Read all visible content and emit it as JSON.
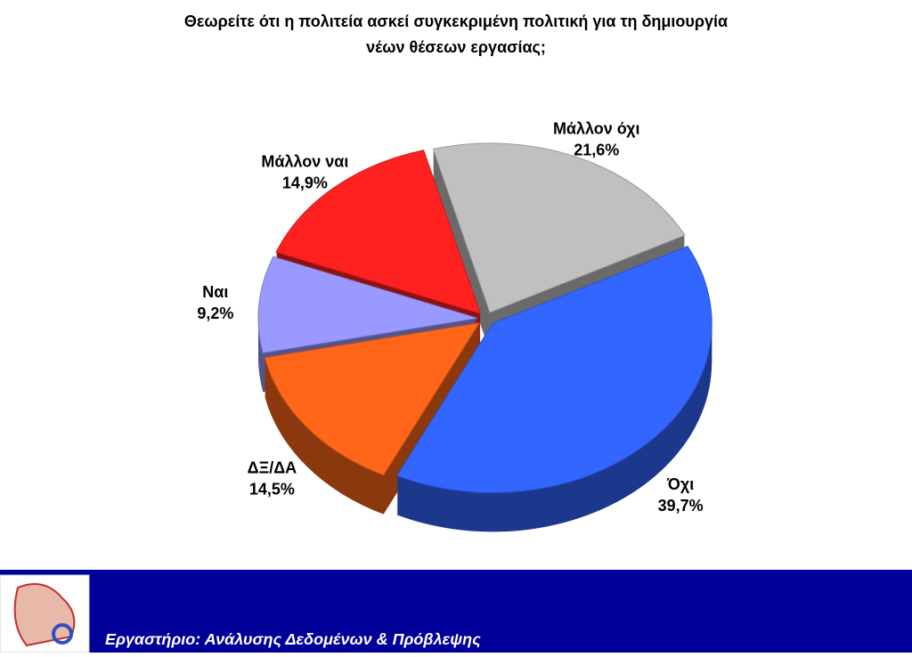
{
  "chart_data": {
    "type": "pie",
    "title": [
      "Θεωρείτε ότι η πολιτεία ασκεί συγκεκριμένη πολιτική για τη δημιουργία",
      "νέων θέσεων εργασίας;"
    ],
    "categories": [
      "Μάλλον όχι",
      "Όχι",
      "ΔΞ/ΔΑ",
      "Ναι",
      "Μάλλον ναι"
    ],
    "values": [
      21.6,
      39.7,
      14.5,
      9.2,
      14.9
    ],
    "value_labels": [
      "21,6%",
      "39,7%",
      "14,5%",
      "9,2%",
      "14,9%"
    ],
    "colors": [
      "#c0c0c0",
      "#3366ff",
      "#ff6619",
      "#9999ff",
      "#ff2020"
    ]
  },
  "footer": {
    "text": "Εργαστήριο: Ανάλυσης Δεδομένων & Πρόβλεψης"
  }
}
